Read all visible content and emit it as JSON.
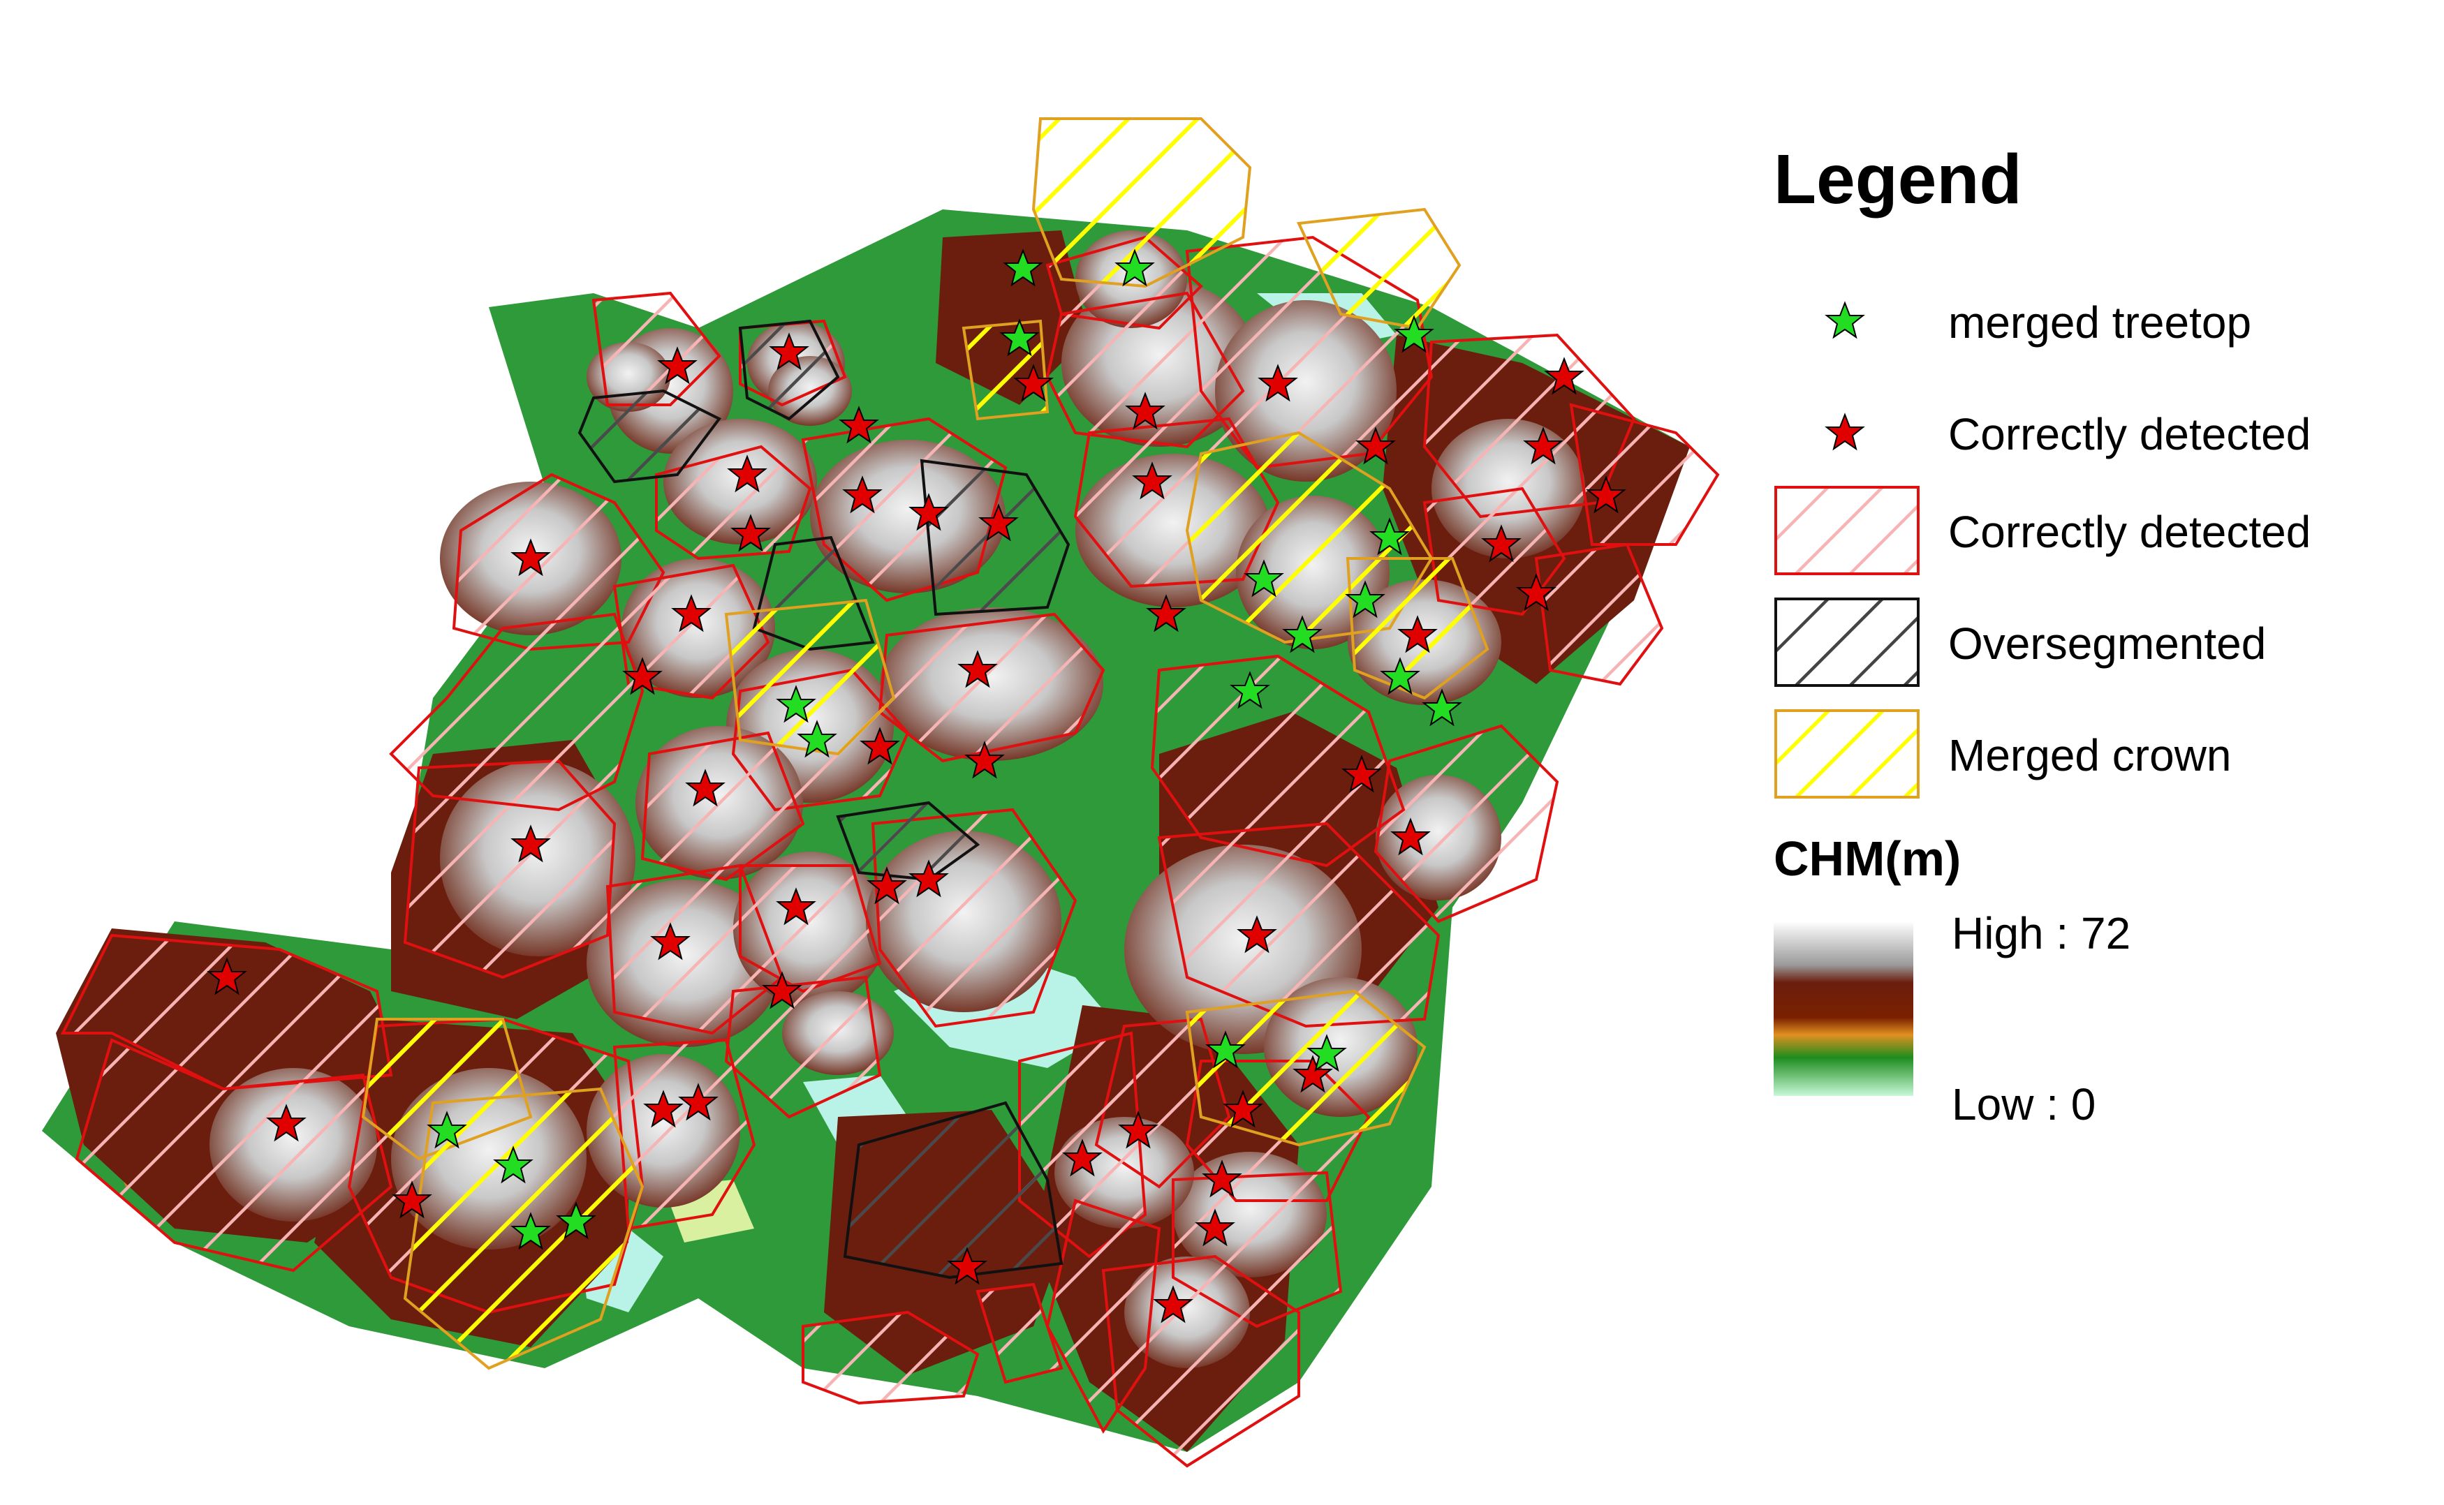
{
  "legend": {
    "title": "Legend",
    "items": [
      {
        "label": "merged treetop",
        "symbol": "green-star-icon",
        "color": "#22dd22"
      },
      {
        "label": "Correctly detected",
        "symbol": "red-star-icon",
        "color": "#e00000"
      },
      {
        "label": "Correctly detected",
        "symbol": "red-hatch-swatch",
        "color": "#e02020",
        "hatch": "#f4a8a8"
      },
      {
        "label": "Oversegmented",
        "symbol": "black-hatch-swatch",
        "color": "#222222",
        "hatch": "#444444"
      },
      {
        "label": "Merged crown",
        "symbol": "yellow-hatch-swatch",
        "color": "#e0a020",
        "hatch": "#ffff00"
      }
    ],
    "chm": {
      "title": "CHM(m)",
      "high": "High : 72",
      "low": "Low : 0",
      "ramp_colors": [
        "#ffffff",
        "#a0a0a0",
        "#6b1e0e",
        "#7a2000",
        "#e09020",
        "#1e8c1e",
        "#b8f0c8"
      ]
    }
  },
  "map": {
    "fills": {
      "canopy_dark": "#6b1e0e",
      "canopy_light": "#d9d9d9",
      "ground_green": "#2e9a3a",
      "ground_cyan": "#b9f2e6"
    },
    "red_treetops": 58,
    "green_treetops": 17
  }
}
